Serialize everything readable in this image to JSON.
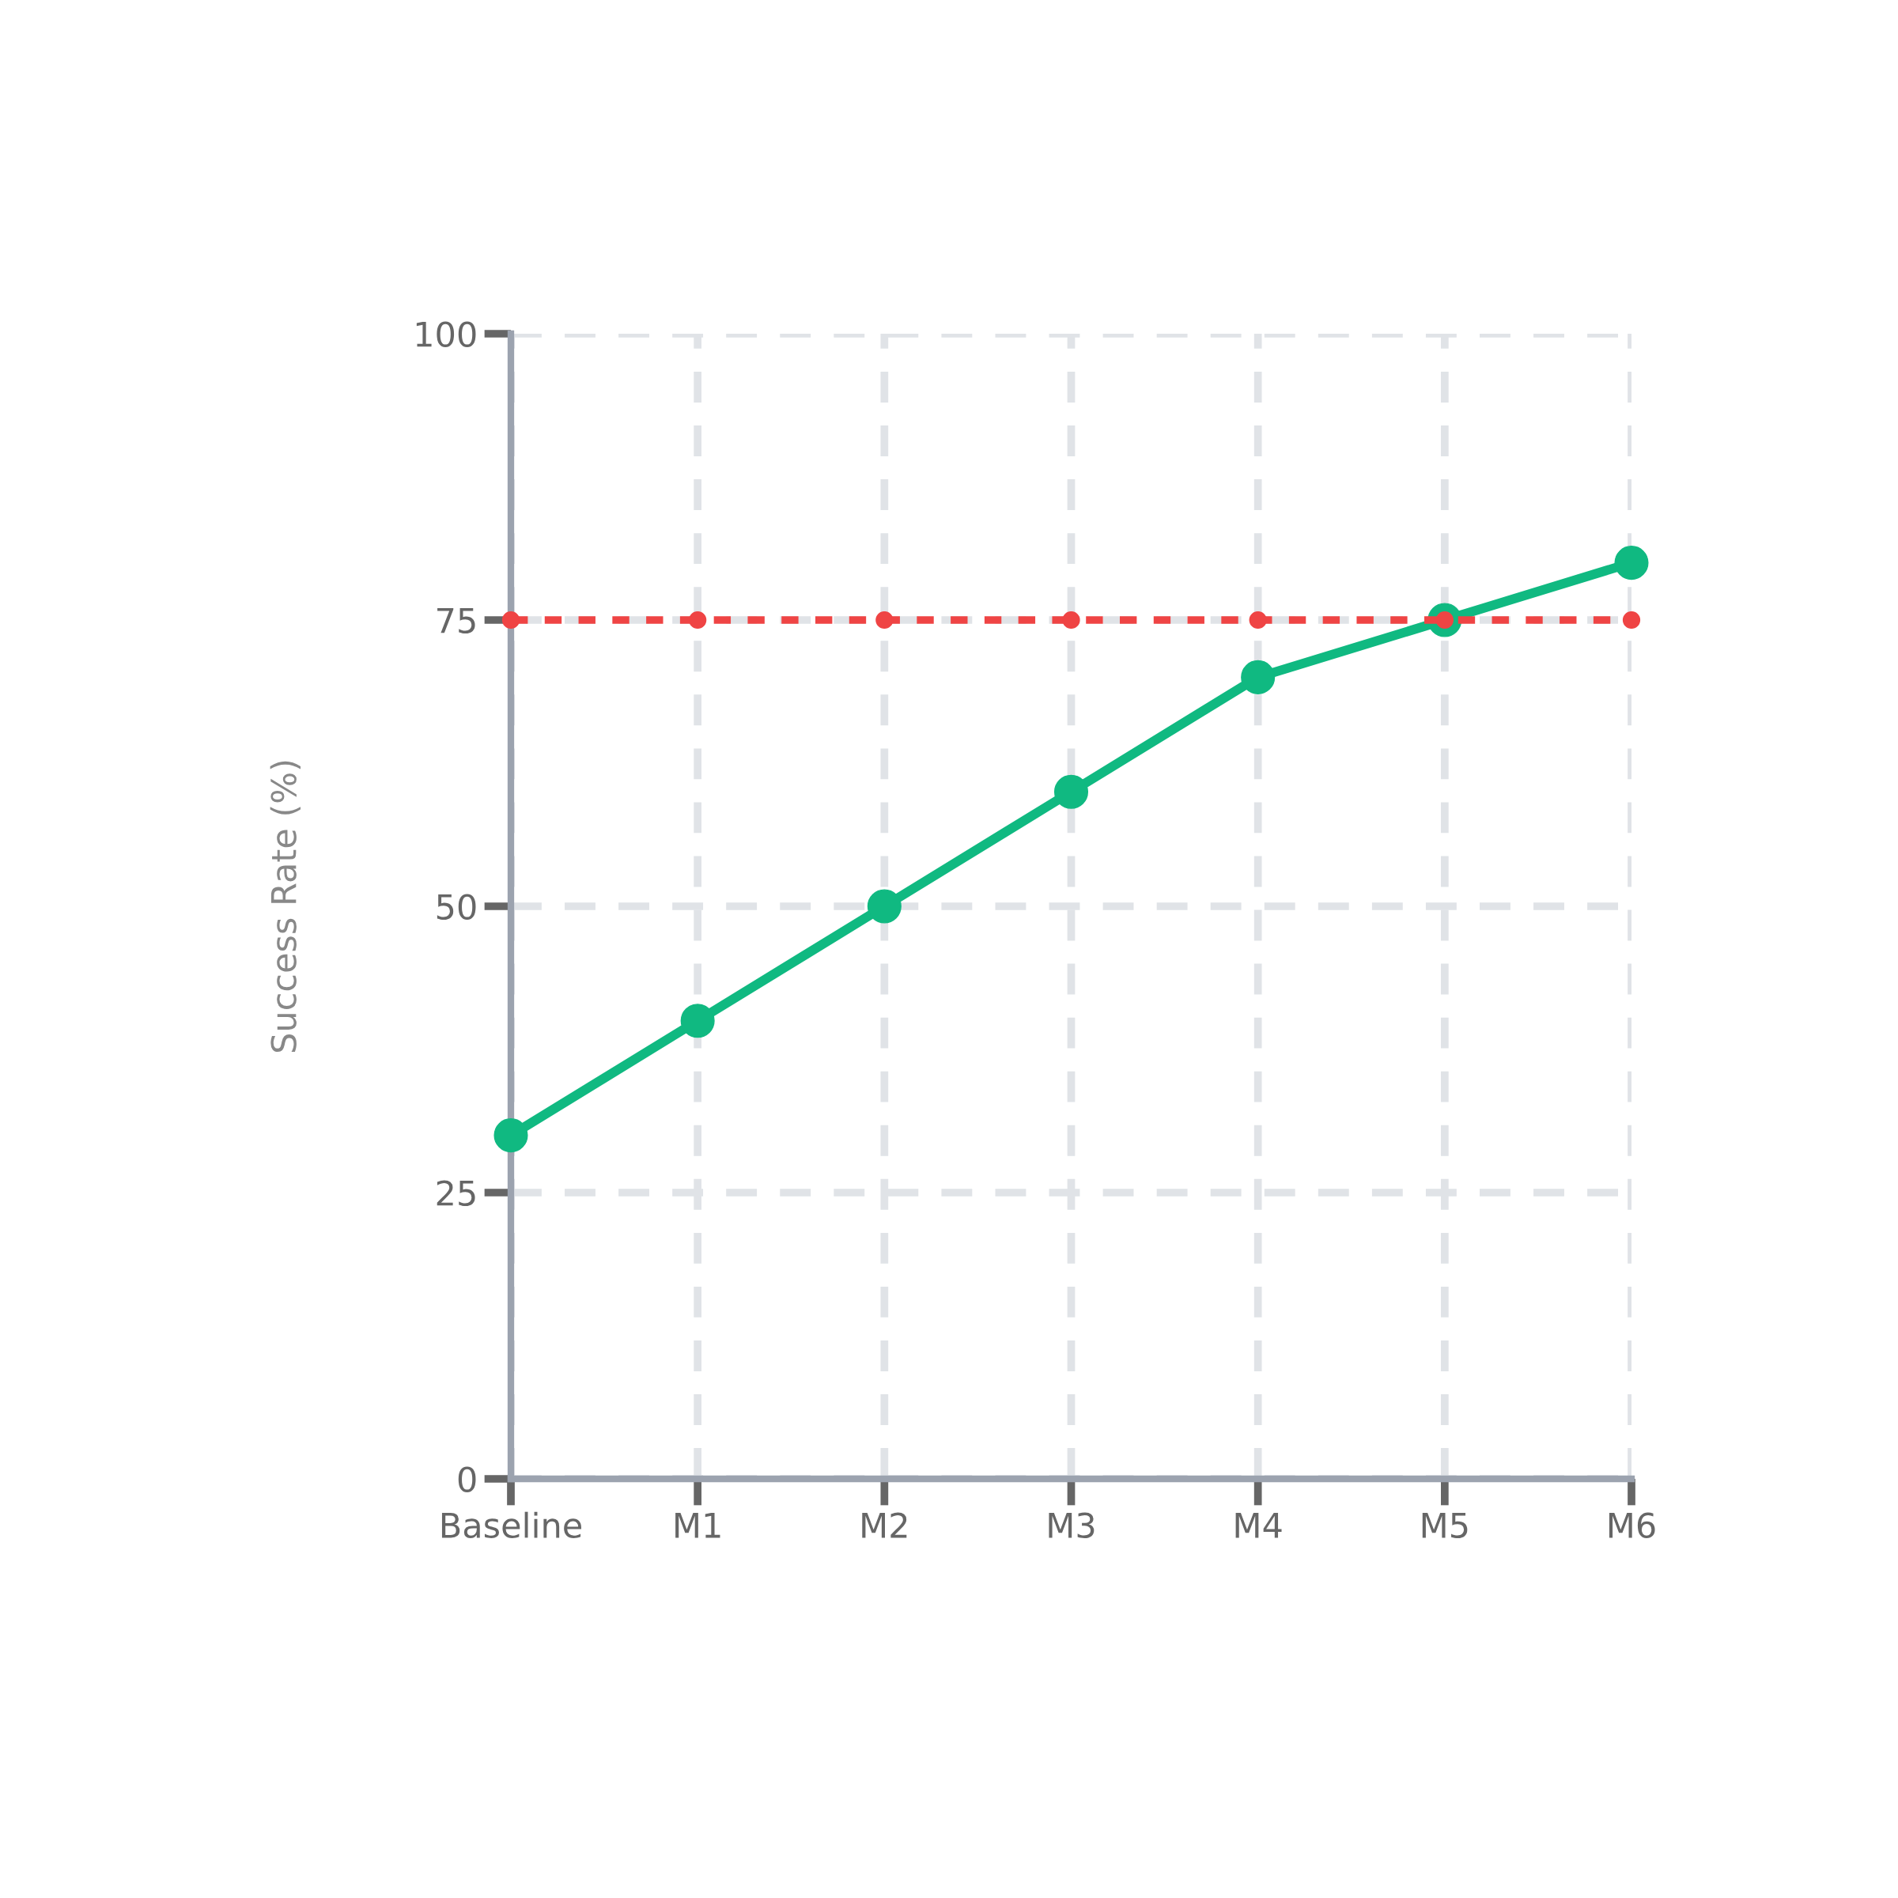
{
  "chart_data": {
    "type": "line",
    "ylabel": "Success Rate (%)",
    "categories": [
      "Baseline",
      "M1",
      "M2",
      "M3",
      "M4",
      "M5",
      "M6"
    ],
    "series": [
      {
        "color": "#10b981",
        "values": [
          30,
          40,
          50,
          60,
          70,
          75,
          80
        ],
        "line_style": "solid"
      },
      {
        "color": "#ef4444",
        "values": [
          75,
          75,
          75,
          75,
          75,
          75,
          75
        ],
        "line_style": "dashed"
      }
    ],
    "ylim": [
      0,
      100
    ],
    "yticks": [
      0,
      25,
      50,
      75,
      100
    ],
    "grid": true,
    "marker": "circle"
  }
}
